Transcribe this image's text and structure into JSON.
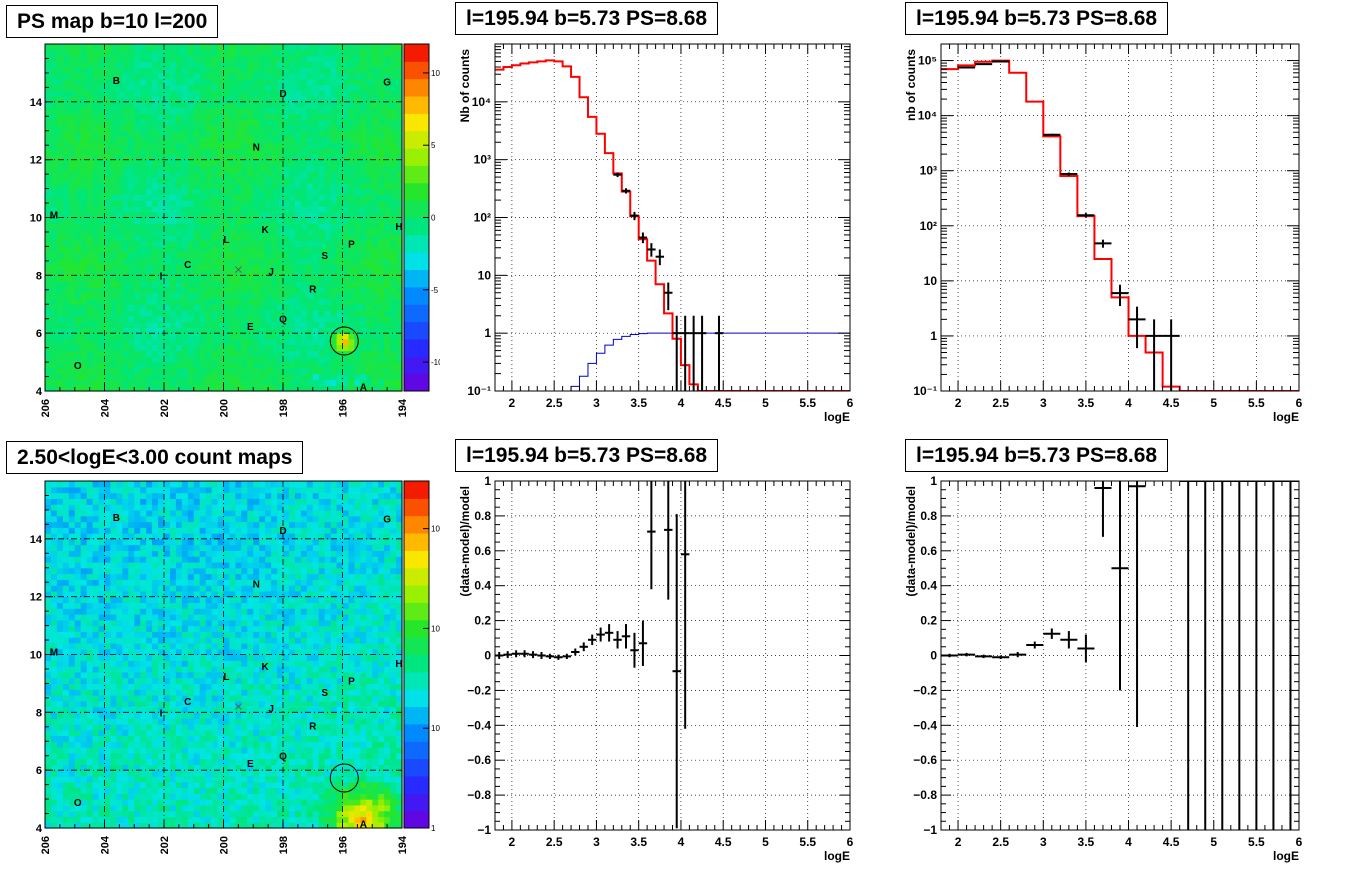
{
  "titles": {
    "map_top": "PS map b=10 l=200",
    "map_bottom": "2.50<logE<3.00 count maps",
    "spec_top_mid": "l=195.94 b=5.73 PS=8.68",
    "spec_top_right": "l=195.94 b=5.73 PS=8.68",
    "resid_bot_mid": "l=195.94 b=5.73 PS=8.68",
    "resid_bot_right": "l=195.94 b=5.73 PS=8.68"
  },
  "colors": {
    "model_line": "#ff0000",
    "data_points": "#000000",
    "background_model": "#0000cc",
    "grid": "#000000"
  },
  "sources": [
    {
      "label": "A",
      "l": 195.3,
      "b": 4.15
    },
    {
      "label": "B",
      "l": 203.6,
      "b": 14.75
    },
    {
      "label": "C",
      "l": 201.2,
      "b": 8.4
    },
    {
      "label": "D",
      "l": 198.0,
      "b": 14.3
    },
    {
      "label": "E",
      "l": 199.1,
      "b": 6.25
    },
    {
      "label": "G",
      "l": 194.5,
      "b": 14.7
    },
    {
      "label": "H",
      "l": 194.1,
      "b": 9.7
    },
    {
      "label": "I",
      "l": 202.1,
      "b": 8.0
    },
    {
      "label": "J",
      "l": 198.4,
      "b": 8.15
    },
    {
      "label": "K",
      "l": 198.6,
      "b": 9.6
    },
    {
      "label": "L",
      "l": 199.9,
      "b": 9.25
    },
    {
      "label": "M",
      "l": 205.7,
      "b": 10.1
    },
    {
      "label": "N",
      "l": 198.9,
      "b": 12.45
    },
    {
      "label": "O",
      "l": 204.9,
      "b": 4.9
    },
    {
      "label": "P",
      "l": 195.7,
      "b": 9.1
    },
    {
      "label": "Q",
      "l": 198.0,
      "b": 6.5
    },
    {
      "label": "R",
      "l": 197.0,
      "b": 7.55
    },
    {
      "label": "S",
      "l": 196.6,
      "b": 8.7
    }
  ],
  "chart_data": [
    {
      "id": "map_top",
      "type": "heatmap",
      "title": "PS map b=10 l=200",
      "xlim": [
        206,
        194
      ],
      "ylim": [
        4,
        16
      ],
      "xticks": [
        "206",
        "204",
        "202",
        "200",
        "198",
        "196",
        "194"
      ],
      "yticks": [
        "4",
        "6",
        "8",
        "10",
        "12",
        "14"
      ],
      "zlim": [
        -12,
        12
      ],
      "zticks": [
        "10",
        "5",
        "0",
        "-5",
        "-10"
      ],
      "marker_circle": {
        "l": 195.94,
        "b": 5.73
      },
      "grid": true
    },
    {
      "id": "map_bottom",
      "type": "heatmap",
      "title": "2.50<logE<3.00 count maps",
      "xlim": [
        206,
        194
      ],
      "ylim": [
        4,
        16
      ],
      "xticks": [
        "206",
        "204",
        "202",
        "200",
        "198",
        "196",
        "194"
      ],
      "yticks": [
        "4",
        "6",
        "8",
        "10",
        "12",
        "14"
      ],
      "zscale": "log",
      "zlim": [
        1,
        3000
      ],
      "zticks": [
        "10³",
        "10²",
        "10",
        "1"
      ],
      "marker_circle": {
        "l": 195.94,
        "b": 5.73
      },
      "grid": true
    },
    {
      "id": "spec_top_mid",
      "type": "line",
      "title": "l=195.94 b=5.73 PS=8.68",
      "xlabel": "logE",
      "ylabel": "Nb of counts",
      "xlim": [
        1.8,
        6.0
      ],
      "ylim": [
        0.1,
        100000
      ],
      "yscale": "log",
      "xticks": [
        "2",
        "2.5",
        "3",
        "3.5",
        "4",
        "4.5",
        "5",
        "5.5",
        "6"
      ],
      "yticks": [
        "10⁻¹",
        "1",
        "10",
        "10²",
        "10³",
        "10⁴"
      ],
      "grid": true,
      "bin_width": 0.1,
      "model": {
        "x_start": 1.8,
        "values": [
          36000,
          40000,
          43000,
          46000,
          48000,
          50000,
          52000,
          50000,
          41000,
          27000,
          12000,
          5500,
          2800,
          1300,
          580,
          280,
          105,
          42,
          18,
          7,
          2.2,
          0.8,
          0.28,
          0.13,
          0.1,
          0.1,
          0.1,
          0.1,
          0.1,
          0.1,
          0.1,
          0.1,
          0.1,
          0.1,
          0.1,
          0.1,
          0.1,
          0.1,
          0.1,
          0.1,
          0.1,
          0.1
        ]
      },
      "background": {
        "x_start": 2.5,
        "values": [
          0.1,
          0.1,
          0.12,
          0.18,
          0.3,
          0.45,
          0.62,
          0.78,
          0.88,
          0.95,
          0.98,
          1,
          1,
          1,
          1,
          1,
          1,
          1,
          1,
          1,
          1,
          1,
          1,
          1,
          1,
          1,
          1,
          1,
          1,
          1,
          1,
          1,
          1,
          1,
          1
        ]
      },
      "data": [
        {
          "x": 3.25,
          "y": 550,
          "lo": 500,
          "hi": 600
        },
        {
          "x": 3.35,
          "y": 290,
          "lo": 260,
          "hi": 320
        },
        {
          "x": 3.45,
          "y": 108,
          "lo": 90,
          "hi": 125
        },
        {
          "x": 3.55,
          "y": 45,
          "lo": 36,
          "hi": 55
        },
        {
          "x": 3.65,
          "y": 28,
          "lo": 21,
          "hi": 36
        },
        {
          "x": 3.75,
          "y": 21,
          "lo": 15,
          "hi": 28
        },
        {
          "x": 3.85,
          "y": 5,
          "lo": 2.5,
          "hi": 7.5
        },
        {
          "x": 3.95,
          "y": 1,
          "lo": 0.1,
          "hi": 2
        },
        {
          "x": 4.05,
          "y": 1,
          "lo": 0.1,
          "hi": 2
        },
        {
          "x": 4.15,
          "y": 1,
          "lo": 0.1,
          "hi": 2
        },
        {
          "x": 4.25,
          "y": 1,
          "lo": 0.1,
          "hi": 2
        },
        {
          "x": 4.45,
          "y": 1,
          "lo": 0.1,
          "hi": 2
        }
      ]
    },
    {
      "id": "spec_top_right",
      "type": "line",
      "title": "l=195.94 b=5.73 PS=8.68",
      "xlabel": "logE",
      "ylabel": "nb of counts",
      "xlim": [
        1.8,
        6.0
      ],
      "ylim": [
        0.1,
        200000
      ],
      "yscale": "log",
      "xticks": [
        "2",
        "2.5",
        "3",
        "3.5",
        "4",
        "4.5",
        "5",
        "5.5",
        "6"
      ],
      "yticks": [
        "10⁻¹",
        "1",
        "10",
        "10²",
        "10³",
        "10⁴",
        "10⁵"
      ],
      "grid": true,
      "bin_width": 0.2,
      "model": {
        "x_start": 1.8,
        "values": [
          70000,
          82000,
          95000,
          100000,
          60000,
          18000,
          4200,
          800,
          150,
          25,
          5,
          1,
          0.5,
          0.12,
          0.1,
          0.1,
          0.1,
          0.1,
          0.1,
          0.1,
          0.1
        ]
      },
      "data": [
        {
          "x": 2.1,
          "y": 75000,
          "lo": 74000,
          "hi": 76000
        },
        {
          "x": 2.3,
          "y": 86000,
          "lo": 85000,
          "hi": 87000
        },
        {
          "x": 2.5,
          "y": 96000,
          "lo": 95000,
          "hi": 97000
        },
        {
          "x": 3.1,
          "y": 4500,
          "lo": 4300,
          "hi": 4700
        },
        {
          "x": 3.3,
          "y": 870,
          "lo": 810,
          "hi": 930
        },
        {
          "x": 3.5,
          "y": 155,
          "lo": 140,
          "hi": 170
        },
        {
          "x": 3.7,
          "y": 48,
          "lo": 40,
          "hi": 56
        },
        {
          "x": 3.9,
          "y": 6,
          "lo": 3.5,
          "hi": 8.5
        },
        {
          "x": 4.1,
          "y": 2,
          "lo": 0.6,
          "hi": 3.4
        },
        {
          "x": 4.3,
          "y": 1,
          "lo": 0.1,
          "hi": 2
        },
        {
          "x": 4.5,
          "y": 1,
          "lo": 0.1,
          "hi": 2
        }
      ]
    },
    {
      "id": "resid_bot_mid",
      "type": "scatter",
      "title": "l=195.94 b=5.73 PS=8.68",
      "xlabel": "logE",
      "ylabel": "(data-model)/model",
      "xlim": [
        1.8,
        6.0
      ],
      "ylim": [
        -1,
        1
      ],
      "xticks": [
        "2",
        "2.5",
        "3",
        "3.5",
        "4",
        "4.5",
        "5",
        "5.5",
        "6"
      ],
      "yticks": [
        "−1",
        "−0.8",
        "−0.6",
        "−0.4",
        "−0.2",
        "0",
        "0.2",
        "0.4",
        "0.6",
        "0.8",
        "1"
      ],
      "grid": true,
      "bin_width": 0.1,
      "data": [
        {
          "x": 1.85,
          "y": 0.0,
          "e": 0.02
        },
        {
          "x": 1.95,
          "y": 0.005,
          "e": 0.02
        },
        {
          "x": 2.05,
          "y": 0.01,
          "e": 0.02
        },
        {
          "x": 2.15,
          "y": 0.01,
          "e": 0.02
        },
        {
          "x": 2.25,
          "y": 0.005,
          "e": 0.02
        },
        {
          "x": 2.35,
          "y": 0.0,
          "e": 0.02
        },
        {
          "x": 2.45,
          "y": -0.005,
          "e": 0.015
        },
        {
          "x": 2.55,
          "y": -0.01,
          "e": 0.015
        },
        {
          "x": 2.65,
          "y": -0.005,
          "e": 0.015
        },
        {
          "x": 2.75,
          "y": 0.02,
          "e": 0.02
        },
        {
          "x": 2.85,
          "y": 0.05,
          "e": 0.025
        },
        {
          "x": 2.95,
          "y": 0.09,
          "e": 0.03
        },
        {
          "x": 3.05,
          "y": 0.12,
          "e": 0.04
        },
        {
          "x": 3.15,
          "y": 0.13,
          "e": 0.05
        },
        {
          "x": 3.25,
          "y": 0.09,
          "e": 0.05
        },
        {
          "x": 3.35,
          "y": 0.11,
          "e": 0.07
        },
        {
          "x": 3.45,
          "y": 0.03,
          "e": 0.1
        },
        {
          "x": 3.55,
          "y": 0.07,
          "e": 0.13
        },
        {
          "x": 3.65,
          "y": 0.71,
          "e": 0.33
        },
        {
          "x": 3.85,
          "y": 0.72,
          "e": 0.4
        },
        {
          "x": 3.95,
          "y": -0.09,
          "e": 0.9
        },
        {
          "x": 4.05,
          "y": 0.58,
          "e": 1.0
        }
      ]
    },
    {
      "id": "resid_bot_right",
      "type": "scatter",
      "title": "l=195.94 b=5.73 PS=8.68",
      "xlabel": "logE",
      "ylabel": "(data-model)/model",
      "xlim": [
        1.8,
        6.0
      ],
      "ylim": [
        -1,
        1
      ],
      "xticks": [
        "2",
        "2.5",
        "3",
        "3.5",
        "4",
        "4.5",
        "5",
        "5.5",
        "6"
      ],
      "yticks": [
        "−1",
        "−0.8",
        "−0.6",
        "−0.4",
        "−0.2",
        "0",
        "0.2",
        "0.4",
        "0.6",
        "0.8",
        "1"
      ],
      "grid": true,
      "bin_width": 0.2,
      "data": [
        {
          "x": 1.9,
          "y": 0.0,
          "e": 0.01
        },
        {
          "x": 2.1,
          "y": 0.005,
          "e": 0.01
        },
        {
          "x": 2.3,
          "y": -0.005,
          "e": 0.01
        },
        {
          "x": 2.5,
          "y": -0.01,
          "e": 0.01
        },
        {
          "x": 2.7,
          "y": 0.005,
          "e": 0.015
        },
        {
          "x": 2.9,
          "y": 0.06,
          "e": 0.02
        },
        {
          "x": 3.1,
          "y": 0.125,
          "e": 0.03
        },
        {
          "x": 3.3,
          "y": 0.09,
          "e": 0.05
        },
        {
          "x": 3.5,
          "y": 0.04,
          "e": 0.08
        },
        {
          "x": 3.7,
          "y": 0.96,
          "e": 0.28
        },
        {
          "x": 3.9,
          "y": 0.5,
          "e": 0.7
        },
        {
          "x": 4.1,
          "y": 0.97,
          "e": 1.38
        },
        {
          "x": 4.7,
          "y": 1.0,
          "e": 2.0
        },
        {
          "x": 4.9,
          "y": 1.0,
          "e": 2.0
        },
        {
          "x": 5.1,
          "y": 1.0,
          "e": 2.0
        },
        {
          "x": 5.3,
          "y": 1.0,
          "e": 2.0
        },
        {
          "x": 5.5,
          "y": 1.0,
          "e": 2.0
        },
        {
          "x": 5.7,
          "y": 1.0,
          "e": 2.0
        },
        {
          "x": 5.9,
          "y": 1.0,
          "e": 2.0
        }
      ]
    }
  ]
}
